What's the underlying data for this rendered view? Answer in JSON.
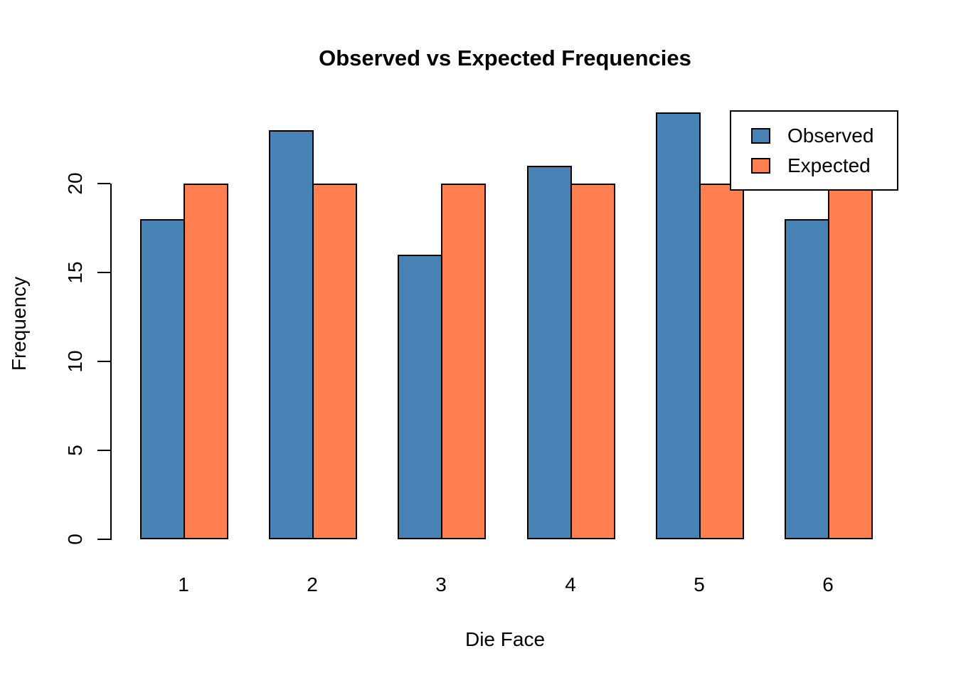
{
  "title": "Observed vs Expected Frequencies",
  "chart_data": {
    "type": "bar",
    "title": "Observed vs Expected Frequencies",
    "xlabel": "Die Face",
    "ylabel": "Frequency",
    "categories": [
      "1",
      "2",
      "3",
      "4",
      "5",
      "6"
    ],
    "series": [
      {
        "name": "Observed",
        "color": "#4682B4",
        "values": [
          18,
          23,
          16,
          21,
          24,
          18
        ]
      },
      {
        "name": "Expected",
        "color": "#FF7F50",
        "values": [
          20,
          20,
          20,
          20,
          20,
          20
        ]
      }
    ],
    "yticks": [
      0,
      5,
      10,
      15,
      20
    ],
    "axis_range": [
      0,
      20
    ],
    "grid": false,
    "legend_position": "top-right",
    "bar_border_color": "#000000",
    "background_color": "#ffffff"
  }
}
